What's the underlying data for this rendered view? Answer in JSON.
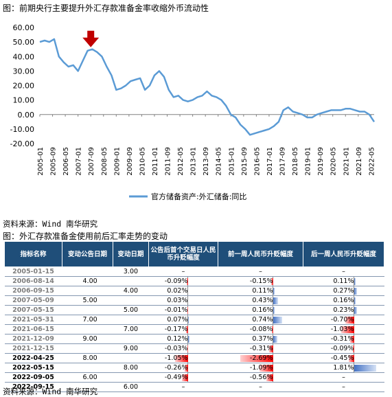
{
  "top_title": "图：前期央行主要提升外汇存款准备金率收缩外币流动性",
  "source1": "资料来源：Wind 南华研究",
  "table_title": "图：外汇存款准备金使用前后汇率走势的变动",
  "source2": "资料来源：Wind 南华研究",
  "colors": {
    "line": "#5b9bd5",
    "arrow": "#c00000",
    "header_bg": "#1f4e79",
    "neg_bar": "#ff0000",
    "pos_bar": "#4472c4"
  },
  "chart_data": {
    "type": "line",
    "series": [
      {
        "name": "官方储备资产:外汇储备:同比",
        "x": [
          "2005-01",
          "2005-04",
          "2005-07",
          "2005-10",
          "2006-01",
          "2006-04",
          "2006-07",
          "2006-10",
          "2007-01",
          "2007-04",
          "2007-07",
          "2007-10",
          "2008-01",
          "2008-04",
          "2008-07",
          "2008-10",
          "2009-01",
          "2009-04",
          "2009-07",
          "2009-10",
          "2010-01",
          "2010-04",
          "2010-07",
          "2010-10",
          "2011-01",
          "2011-04",
          "2011-07",
          "2011-10",
          "2012-01",
          "2012-04",
          "2012-07",
          "2012-10",
          "2013-01",
          "2013-04",
          "2013-07",
          "2013-10",
          "2014-01",
          "2014-04",
          "2014-07",
          "2014-10",
          "2015-01",
          "2015-04",
          "2015-07",
          "2015-10",
          "2016-01",
          "2016-04",
          "2016-07",
          "2016-10",
          "2017-01",
          "2017-04",
          "2017-07",
          "2017-10",
          "2018-01",
          "2018-04",
          "2018-07",
          "2018-10",
          "2019-01",
          "2019-04",
          "2019-07",
          "2019-10",
          "2020-01",
          "2020-04",
          "2020-07",
          "2020-10",
          "2021-01",
          "2021-04",
          "2021-07",
          "2021-10",
          "2022-01",
          "2022-04",
          "2022-07"
        ],
        "values": [
          50,
          51,
          50,
          52,
          40,
          36,
          33,
          34,
          30,
          37,
          44,
          45,
          43,
          40,
          33,
          27,
          17,
          18,
          20,
          23,
          24,
          25,
          17,
          20,
          27,
          30,
          26,
          17,
          12,
          13,
          10,
          9,
          10,
          12,
          13,
          16,
          13,
          12,
          10,
          6,
          0,
          -2,
          -7,
          -10,
          -14,
          -13,
          -12,
          -11,
          -10,
          -8,
          -5,
          3,
          5,
          2,
          1,
          0,
          -2,
          -2,
          0,
          1,
          2,
          3,
          3,
          3,
          4,
          4,
          3,
          2,
          2,
          0,
          -5
        ]
      }
    ],
    "categories": [
      "2005-01",
      "2005-09",
      "2006-05",
      "2007-01",
      "2007-09",
      "2008-05",
      "2009-01",
      "2009-09",
      "2010-05",
      "2011-01",
      "2011-09",
      "2012-05",
      "2013-01",
      "2013-09",
      "2014-05",
      "2015-01",
      "2015-09",
      "2016-05",
      "2017-01",
      "2017-09",
      "2018-05",
      "2019-01",
      "2019-09",
      "2020-05",
      "2021-01",
      "2021-09",
      "2022-05"
    ],
    "yticks": [
      "60.00",
      "50.00",
      "40.00",
      "30.00",
      "20.00",
      "10.00",
      "0.00",
      "-10.00",
      "-20.00"
    ],
    "ylim": [
      -20,
      60
    ],
    "grid": false,
    "legend": "bottom",
    "annotation": {
      "type": "down-arrow",
      "x": "2007-09",
      "y": 45
    }
  },
  "table": {
    "headers": [
      "指标名称",
      "变动公告日期",
      "变动日期",
      "公告后首个交易日人民币升贬幅度",
      "前一周人民币升贬幅度",
      "后一周人民币升贬幅度"
    ],
    "rows": [
      {
        "date": "2005-01-15",
        "announce": "",
        "change": "3.00",
        "first_day": "–",
        "prev_week": "–",
        "next_week": "–",
        "bold": false,
        "vals": [
          null,
          null,
          null
        ]
      },
      {
        "date": "2006-08-14",
        "announce": "4.00",
        "change": "",
        "first_day": "-0.09%",
        "prev_week": "-0.15%",
        "next_week": "0.11%",
        "bold": false,
        "vals": [
          -0.09,
          -0.15,
          0.11
        ]
      },
      {
        "date": "2006-09-15",
        "announce": "",
        "change": "4.00",
        "first_day": "0.02%",
        "prev_week": "0.11%",
        "next_week": "0.27%",
        "bold": false,
        "vals": [
          0.02,
          0.11,
          0.27
        ]
      },
      {
        "date": "2007-05-09",
        "announce": "5.00",
        "change": "",
        "first_day": "0.03%",
        "prev_week": "0.43%",
        "next_week": "0.16%",
        "bold": false,
        "vals": [
          0.03,
          0.43,
          0.16
        ]
      },
      {
        "date": "2007-05-15",
        "announce": "",
        "change": "5.00",
        "first_day": "-0.01%",
        "prev_week": "0.16%",
        "next_week": "0.23%",
        "bold": false,
        "vals": [
          -0.01,
          0.16,
          0.23
        ]
      },
      {
        "date": "2021-05-31",
        "announce": "7.00",
        "change": "",
        "first_day": "0.07%",
        "prev_week": "0.74%",
        "next_week": "-0.70%",
        "bold": false,
        "vals": [
          0.07,
          0.74,
          -0.7
        ]
      },
      {
        "date": "2021-06-15",
        "announce": "",
        "change": "7.00",
        "first_day": "-0.17%",
        "prev_week": "-0.08%",
        "next_week": "-1.03%",
        "bold": false,
        "vals": [
          -0.17,
          -0.08,
          -1.03
        ]
      },
      {
        "date": "2021-12-09",
        "announce": "9.00",
        "change": "",
        "first_day": "0.12%",
        "prev_week": "0.37%",
        "next_week": "-0.31%",
        "bold": false,
        "vals": [
          0.12,
          0.37,
          -0.31
        ]
      },
      {
        "date": "2021-12-15",
        "announce": "",
        "change": "9.00",
        "first_day": "-0.03%",
        "prev_week": "-0.31%",
        "next_week": "-0.09%",
        "bold": false,
        "vals": [
          -0.03,
          -0.31,
          -0.09
        ]
      },
      {
        "date": "2022-04-25",
        "announce": "8.00",
        "change": "",
        "first_day": "-1.05%",
        "prev_week": "-2.69%",
        "next_week": "-0.45%",
        "bold": true,
        "vals": [
          -1.05,
          -2.69,
          -0.45
        ]
      },
      {
        "date": "2022-05-15",
        "announce": "",
        "change": "8.00",
        "first_day": "-0.26%",
        "prev_week": "-1.09%",
        "next_week": "1.81%",
        "bold": true,
        "vals": [
          -0.26,
          -1.09,
          1.81
        ]
      },
      {
        "date": "2022-09-05",
        "announce": "6.00",
        "change": "",
        "first_day": "-0.49%",
        "prev_week": "-0.56%",
        "next_week": "–",
        "bold": true,
        "vals": [
          -0.49,
          -0.56,
          null
        ]
      },
      {
        "date": "2022-09-15",
        "announce": "",
        "change": "6.00",
        "first_day": "–",
        "prev_week": "–",
        "next_week": "–",
        "bold": true,
        "vals": [
          null,
          null,
          null
        ]
      }
    ]
  }
}
